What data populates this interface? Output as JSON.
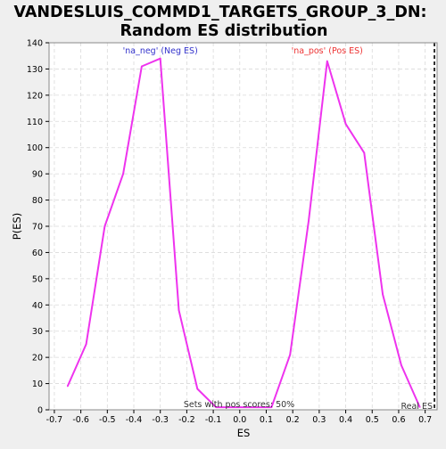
{
  "chart_data": {
    "type": "line",
    "title_line1": "VANDESLUIS_COMMD1_TARGETS_GROUP_3_DN:",
    "title_line2": "Random ES distribution",
    "xlabel": "ES",
    "ylabel": "P(ES)",
    "xlim": [
      -0.72,
      0.745
    ],
    "ylim": [
      0,
      140
    ],
    "xticks": [
      -0.7,
      -0.6,
      -0.5,
      -0.4,
      -0.3,
      -0.2,
      -0.1,
      0.0,
      0.1,
      0.2,
      0.3,
      0.4,
      0.5,
      0.6,
      0.7
    ],
    "xtick_labels": [
      "-0.7",
      "-0.6",
      "-0.5",
      "-0.4",
      "-0.3",
      "-0.2",
      "-0.1",
      "0.0",
      "0.1",
      "0.2",
      "0.3",
      "0.4",
      "0.5",
      "0.6",
      "0.7"
    ],
    "yticks": [
      0,
      10,
      20,
      30,
      40,
      50,
      60,
      70,
      80,
      90,
      100,
      110,
      120,
      130,
      140
    ],
    "ytick_labels": [
      "0",
      "10",
      "20",
      "30",
      "40",
      "50",
      "60",
      "70",
      "80",
      "90",
      "100",
      "110",
      "120",
      "130",
      "140"
    ],
    "grid": true,
    "line_color": "#ee33ee",
    "series": [
      {
        "name": "'na_neg' (Neg ES)",
        "label_color": "#3333cc",
        "x": [
          -0.65,
          -0.58,
          -0.51,
          -0.44,
          -0.37,
          -0.3,
          -0.23,
          -0.16,
          -0.09
        ],
        "y": [
          9,
          25,
          70,
          90,
          131,
          134,
          38,
          8,
          1
        ]
      },
      {
        "name": "'na_pos' (Pos ES)",
        "label_color": "#ee3333",
        "x": [
          -0.09,
          0.12,
          0.19,
          0.26,
          0.33,
          0.4,
          0.47,
          0.54,
          0.61,
          0.68
        ],
        "y": [
          1,
          1,
          21,
          72,
          133,
          109,
          98,
          44,
          17,
          1
        ]
      }
    ],
    "real_es": {
      "x": 0.735,
      "label": "Real ES"
    },
    "annotation": "Sets with pos scores: 50%"
  }
}
